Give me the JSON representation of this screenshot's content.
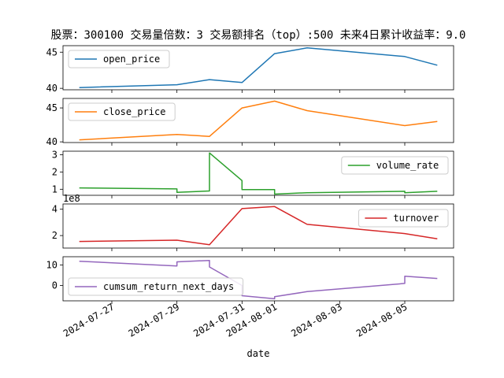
{
  "title": "股票：300100  交易量倍数：3 交易额排名（top）:500 未来4日累计收益率：9.0",
  "chart_data": {
    "type": "line",
    "xlabel": "date",
    "x_ticks": [
      "2024-07-27",
      "2024-07-29",
      "2024-07-31",
      "2024-08-01",
      "2024-08-03",
      "2024-08-05"
    ],
    "x": [
      "2024-07-26",
      "2024-07-29",
      "2024-07-29",
      "2024-07-30",
      "2024-07-30",
      "2024-07-31",
      "2024-07-31",
      "2024-08-01",
      "2024-08-01",
      "2024-08-02",
      "2024-08-02",
      "2024-08-05",
      "2024-08-05",
      "2024-08-06"
    ],
    "xlim": [
      "2024-07-25 12:00",
      "2024-08-06 12:00"
    ],
    "panels": [
      {
        "name": "open_price",
        "color": "#1f77b4",
        "legend_loc": "upper left",
        "y_ticks": [
          "40",
          "45"
        ],
        "ylim": [
          39.8,
          45.9
        ],
        "offset_text": "",
        "values": [
          40.1,
          40.5,
          40.5,
          41.2,
          41.2,
          40.8,
          40.8,
          44.8,
          44.8,
          45.6,
          45.6,
          44.4,
          44.4,
          43.2
        ]
      },
      {
        "name": "close_price",
        "color": "#ff7f0e",
        "legend_loc": "upper left",
        "y_ticks": [
          "40",
          "45"
        ],
        "ylim": [
          39.9,
          46.4
        ],
        "offset_text": "",
        "values": [
          40.3,
          41.1,
          41.1,
          40.8,
          40.8,
          45.0,
          45.0,
          46.0,
          46.0,
          44.6,
          44.6,
          42.4,
          42.4,
          43.0
        ]
      },
      {
        "name": "volume_rate",
        "color": "#2ca02c",
        "legend_loc": "upper right",
        "y_ticks": [
          "1",
          "2",
          "3"
        ],
        "ylim": [
          0.65,
          3.2
        ],
        "offset_text": "",
        "values": [
          1.08,
          1.02,
          0.82,
          0.9,
          3.1,
          1.5,
          0.98,
          0.98,
          0.72,
          0.8,
          0.8,
          0.88,
          0.8,
          0.88
        ]
      },
      {
        "name": "turnover",
        "color": "#d62728",
        "legend_loc": "upper right",
        "y_ticks": [
          "2",
          "4"
        ],
        "ylim": [
          1.05,
          4.4
        ],
        "offset_text": "1e8",
        "values": [
          1.55,
          1.65,
          1.65,
          1.3,
          1.3,
          4.05,
          4.05,
          4.2,
          4.2,
          2.85,
          2.85,
          2.15,
          2.15,
          1.75
        ]
      },
      {
        "name": "cumsum_return_next_days",
        "color": "#9467bd",
        "legend_loc": "lower left",
        "y_ticks": [
          "0",
          "10"
        ],
        "ylim": [
          -7.5,
          14
        ],
        "offset_text": "",
        "values": [
          11.8,
          9.5,
          11.5,
          12.2,
          9.0,
          0.0,
          -5.0,
          -6.5,
          -5.5,
          -3.0,
          -3.0,
          1.0,
          4.5,
          3.4
        ]
      }
    ]
  }
}
